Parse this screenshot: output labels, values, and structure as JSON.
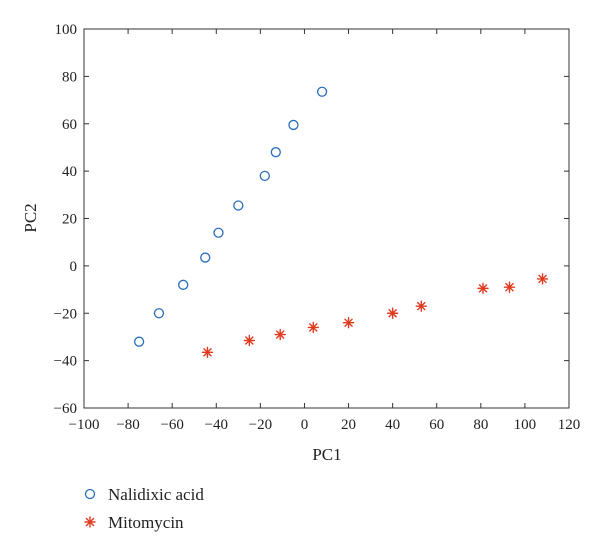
{
  "chart_data": {
    "type": "scatter",
    "xlabel": "PC1",
    "ylabel": "PC2",
    "xlim": [
      -100,
      120
    ],
    "ylim": [
      -60,
      100
    ],
    "xticks": [
      -100,
      -80,
      -60,
      -40,
      -20,
      0,
      20,
      40,
      60,
      80,
      100,
      120
    ],
    "yticks": [
      -60,
      -40,
      -20,
      0,
      20,
      40,
      60,
      80,
      100
    ],
    "grid": false,
    "legend_position": "bottom-left",
    "series": [
      {
        "name": "Nalidixic acid",
        "marker": "circle",
        "color": "#2a6ebb",
        "x": [
          -75,
          -66,
          -55,
          -45,
          -39,
          -30,
          -18,
          -13,
          -5,
          8
        ],
        "y": [
          -32,
          -20,
          -8,
          3.5,
          14,
          25.5,
          38,
          48,
          59.5,
          73.5
        ]
      },
      {
        "name": "Mitomycin",
        "marker": "asterisk",
        "color": "#e03a1e",
        "x": [
          -44,
          -25,
          -11,
          4,
          20,
          40,
          53,
          81,
          93,
          108
        ],
        "y": [
          -36.5,
          -31.5,
          -29,
          -26,
          -24,
          -20,
          -17,
          -9.5,
          -9,
          -5.5
        ]
      }
    ]
  }
}
